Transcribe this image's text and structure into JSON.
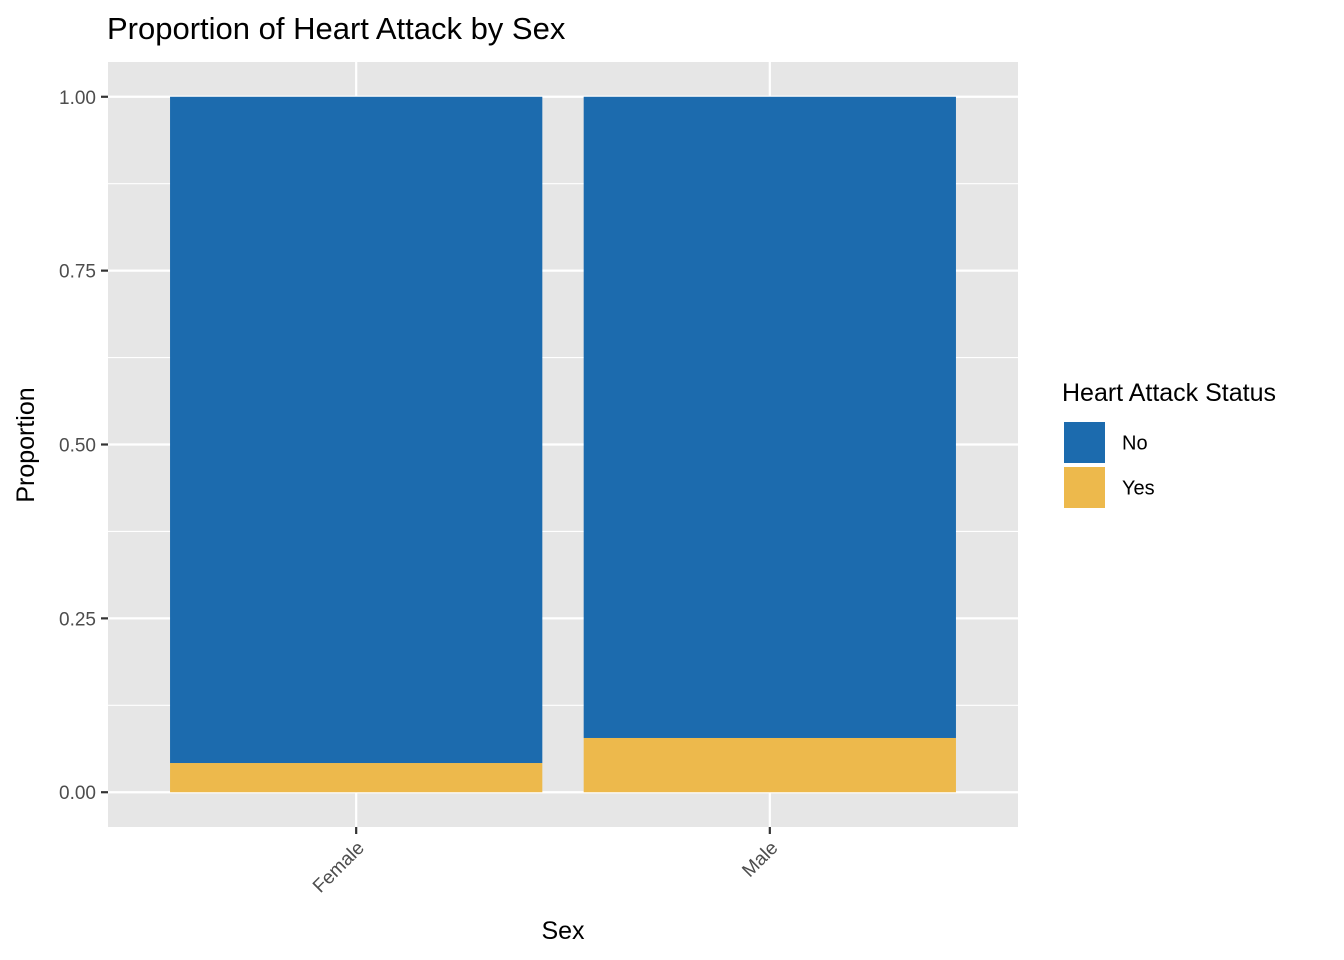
{
  "chart_data": {
    "type": "bar",
    "stacked": true,
    "title": "Proportion of Heart Attack by Sex",
    "xlabel": "Sex",
    "ylabel": "Proportion",
    "categories": [
      "Female",
      "Male"
    ],
    "series": [
      {
        "name": "No",
        "color": "#1c6bae",
        "values": [
          0.958,
          0.922
        ]
      },
      {
        "name": "Yes",
        "color": "#edb94c",
        "values": [
          0.042,
          0.078
        ]
      }
    ],
    "ylim": [
      -0.05,
      1.05
    ],
    "yticks": [
      0,
      0.25,
      0.5,
      0.75,
      1.0
    ],
    "ytick_labels": [
      "0.00",
      "0.25",
      "0.50",
      "0.75",
      "1.00"
    ],
    "legend": {
      "title": "Heart Attack Status",
      "position": "right"
    },
    "grid": true,
    "panel_background": "#e6e6e6",
    "grid_color": "#ffffff"
  }
}
